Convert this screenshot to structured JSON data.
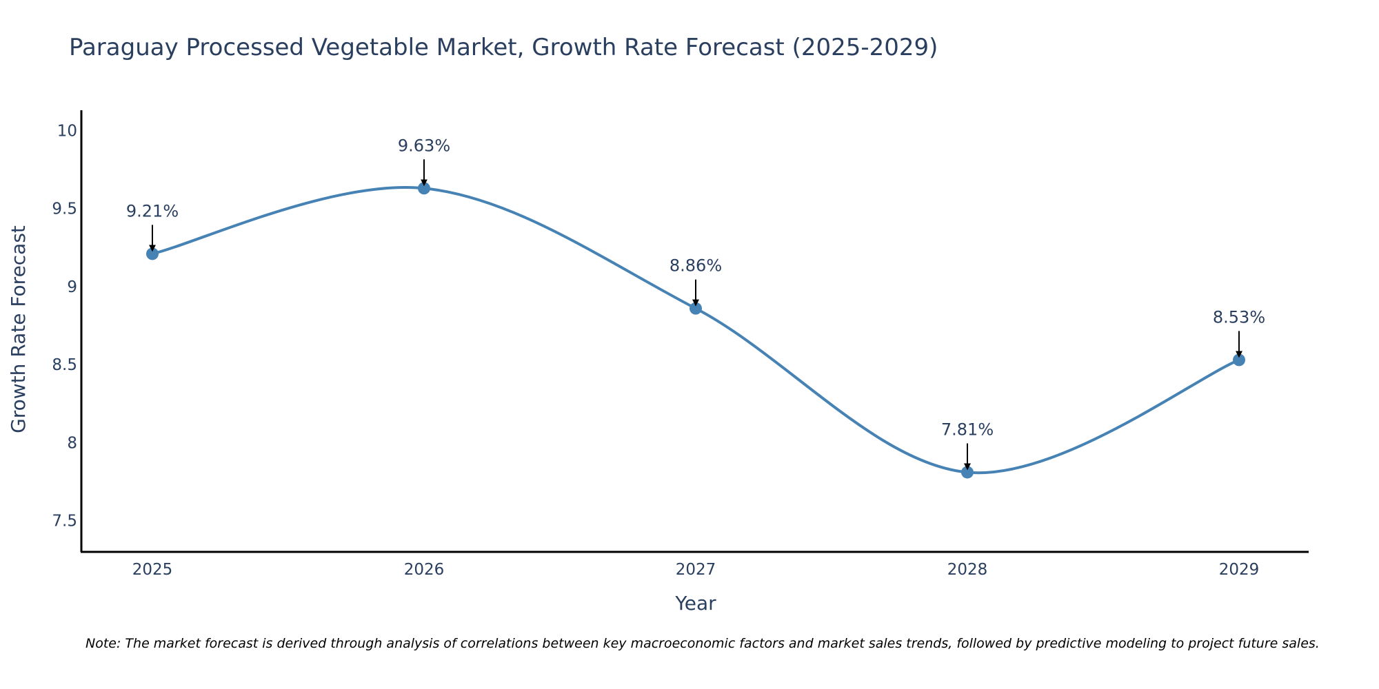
{
  "chart_data": {
    "type": "line",
    "title": "Paraguay Processed Vegetable Market, Growth Rate Forecast (2025-2029)",
    "xlabel": "Year",
    "ylabel": "Growth Rate Forecast",
    "categories": [
      "2025",
      "2026",
      "2027",
      "2028",
      "2029"
    ],
    "series": [
      {
        "name": "Growth Rate Forecast",
        "values": [
          9.21,
          9.63,
          8.86,
          7.81,
          8.53
        ],
        "labels": [
          "9.21%",
          "9.63%",
          "8.86%",
          "7.81%",
          "8.53%"
        ]
      }
    ],
    "ylim": [
      7.3,
      10.13
    ],
    "yticks": [
      7.5,
      8,
      8.5,
      9,
      9.5,
      10
    ],
    "ytick_labels": [
      "7.5",
      "8",
      "8.5",
      "9",
      "9.5",
      "10"
    ],
    "grid": false,
    "line_shape": "spline",
    "colors": {
      "line": "#4682b4",
      "marker": "#4682b4",
      "arrow": "#000000",
      "axis": "#000000",
      "text": "#2a3f5f"
    },
    "note": "Note: The market forecast is derived through analysis of correlations between key macroeconomic factors and market sales trends, followed by predictive modeling to project future sales."
  }
}
